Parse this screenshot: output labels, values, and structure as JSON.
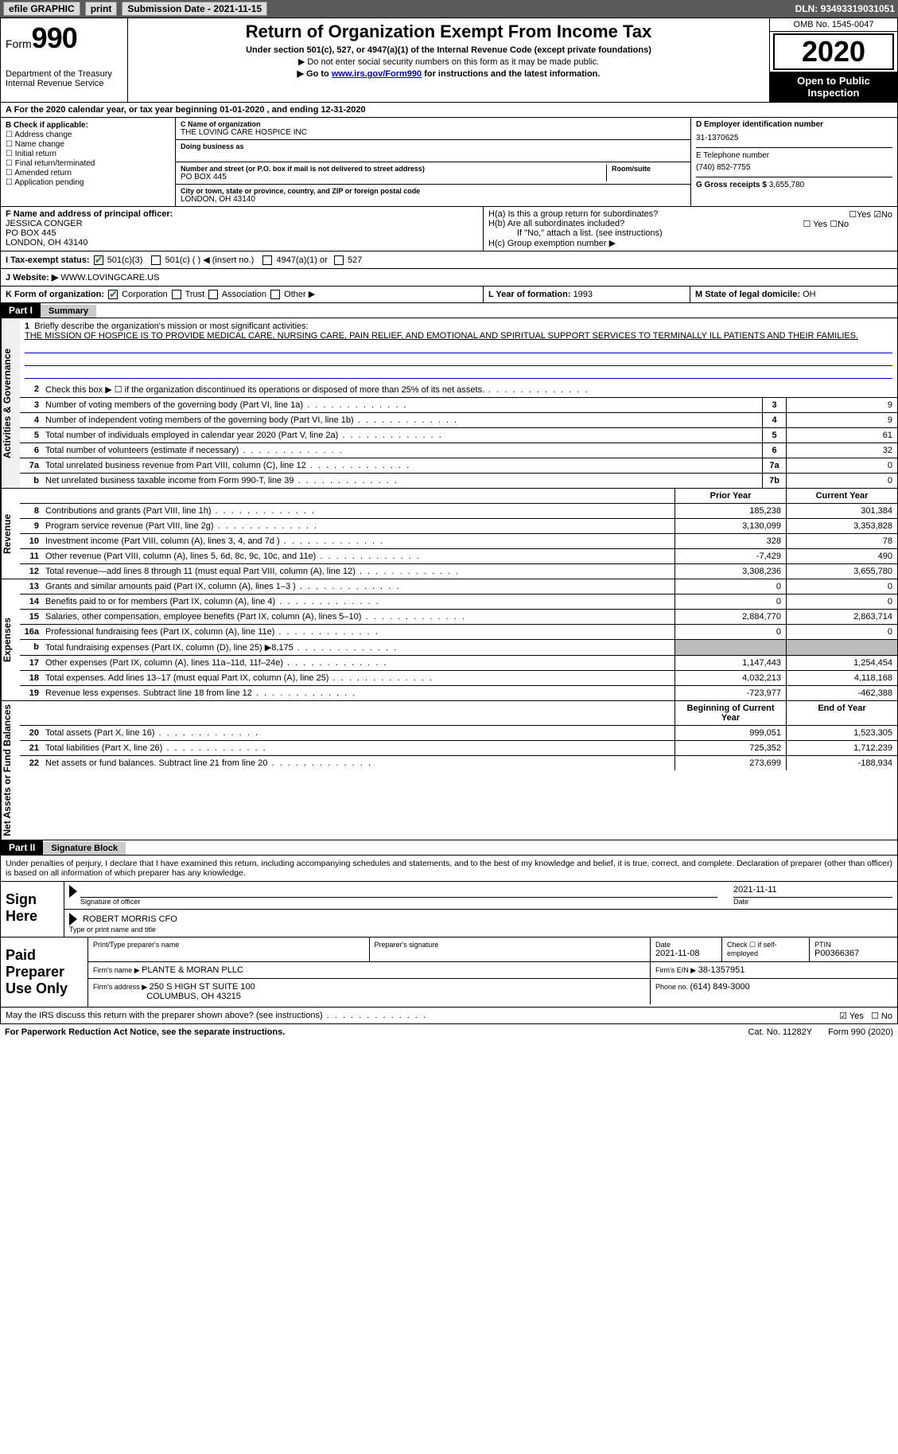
{
  "topbar": {
    "efile": "efile GRAPHIC",
    "print": "print",
    "subdate_label": "Submission Date - ",
    "subdate": "2021-11-15",
    "dln_label": "DLN: ",
    "dln": "93493319031051"
  },
  "hdr": {
    "form_word": "Form",
    "form_num": "990",
    "dept": "Department of the Treasury\nInternal Revenue Service",
    "title": "Return of Organization Exempt From Income Tax",
    "sub": "Under section 501(c), 527, or 4947(a)(1) of the Internal Revenue Code (except private foundations)",
    "note1": "▶ Do not enter social security numbers on this form as it may be made public.",
    "note2a": "▶ Go to ",
    "note2link": "www.irs.gov/Form990",
    "note2b": " for instructions and the latest information.",
    "omb": "OMB No. 1545-0047",
    "year": "2020",
    "inspect": "Open to Public Inspection"
  },
  "A": {
    "text": "A For the 2020 calendar year, or tax year beginning 01-01-2020   , and ending 12-31-2020"
  },
  "B": {
    "label": "B Check if applicable:",
    "items": [
      "☐ Address change",
      "☐ Name change",
      "☐ Initial return",
      "☐ Final return/terminated",
      "☐ Amended return",
      "☐ Application pending"
    ]
  },
  "C": {
    "name_lbl": "C Name of organization",
    "name": "THE LOVING CARE HOSPICE INC",
    "dba_lbl": "Doing business as",
    "addr_lbl": "Number and street (or P.O. box if mail is not delivered to street address)",
    "room_lbl": "Room/suite",
    "addr": "PO BOX 445",
    "city_lbl": "City or town, state or province, country, and ZIP or foreign postal code",
    "city": "LONDON, OH  43140"
  },
  "D": {
    "ein_lbl": "D Employer identification number",
    "ein": "31-1370625",
    "tel_lbl": "E Telephone number",
    "tel": "(740) 852-7755",
    "gross_lbl": "G Gross receipts $ ",
    "gross": "3,655,780"
  },
  "F": {
    "lbl": "F  Name and address of principal officer:",
    "name": "JESSICA CONGER",
    "addr1": "PO BOX 445",
    "addr2": "LONDON, OH  43140"
  },
  "H": {
    "a_lbl": "H(a)  Is this a group return for subordinates?",
    "a_yes": "☐Yes",
    "a_no": "☑No",
    "b_lbl": "H(b)  Are all subordinates included?",
    "b_yes": "☐ Yes",
    "b_no": "☐No",
    "b_note": "If \"No,\" attach a list. (see instructions)",
    "c_lbl": "H(c)  Group exemption number ▶"
  },
  "I": {
    "lbl": "I    Tax-exempt status:",
    "c3": "501(c)(3)",
    "cx": "501(c) (  ) ◀ (insert no.)",
    "a1": "4947(a)(1) or",
    "s527": "527"
  },
  "J": {
    "lbl": "J   Website: ▶  ",
    "val": "WWW.LOVINGCARE.US"
  },
  "K": {
    "lbl": "K Form of organization:",
    "corp": "Corporation",
    "trust": "Trust",
    "assoc": "Association",
    "other": "Other ▶"
  },
  "L": {
    "lbl": "L Year of formation: ",
    "val": "1993"
  },
  "M": {
    "lbl": "M State of legal domicile: ",
    "val": "OH"
  },
  "part1": {
    "label": "Part I",
    "title": "Summary"
  },
  "mission": {
    "num": "1",
    "lbl": "Briefly describe the organization's mission or most significant activities:",
    "text": "THE MISSION OF HOSPICE IS TO PROVIDE MEDICAL CARE, NURSING CARE, PAIN RELIEF, AND EMOTIONAL AND SPIRITUAL SUPPORT SERVICES TO TERMINALLY ILL PATIENTS AND THEIR FAMILIES."
  },
  "gov_lines": [
    {
      "n": "2",
      "d": "Check this box ▶ ☐  if the organization discontinued its operations or disposed of more than 25% of its net assets."
    },
    {
      "n": "3",
      "d": "Number of voting members of the governing body (Part VI, line 1a)",
      "box": "3",
      "v": "9"
    },
    {
      "n": "4",
      "d": "Number of independent voting members of the governing body (Part VI, line 1b)",
      "box": "4",
      "v": "9"
    },
    {
      "n": "5",
      "d": "Total number of individuals employed in calendar year 2020 (Part V, line 2a)",
      "box": "5",
      "v": "61"
    },
    {
      "n": "6",
      "d": "Total number of volunteers (estimate if necessary)",
      "box": "6",
      "v": "32"
    },
    {
      "n": "7a",
      "d": "Total unrelated business revenue from Part VIII, column (C), line 12",
      "box": "7a",
      "v": "0"
    },
    {
      "n": "b",
      "d": "Net unrelated business taxable income from Form 990-T, line 39",
      "box": "7b",
      "v": "0"
    }
  ],
  "vtabs": {
    "gov": "Activities & Governance",
    "rev": "Revenue",
    "exp": "Expenses",
    "net": "Net Assets or Fund Balances"
  },
  "fin_hdr": {
    "py": "Prior Year",
    "cy": "Current Year"
  },
  "rev_lines": [
    {
      "n": "8",
      "d": "Contributions and grants (Part VIII, line 1h)",
      "py": "185,238",
      "cy": "301,384"
    },
    {
      "n": "9",
      "d": "Program service revenue (Part VIII, line 2g)",
      "py": "3,130,099",
      "cy": "3,353,828"
    },
    {
      "n": "10",
      "d": "Investment income (Part VIII, column (A), lines 3, 4, and 7d )",
      "py": "328",
      "cy": "78"
    },
    {
      "n": "11",
      "d": "Other revenue (Part VIII, column (A), lines 5, 6d, 8c, 9c, 10c, and 11e)",
      "py": "-7,429",
      "cy": "490"
    },
    {
      "n": "12",
      "d": "Total revenue—add lines 8 through 11 (must equal Part VIII, column (A), line 12)",
      "py": "3,308,236",
      "cy": "3,655,780"
    }
  ],
  "exp_lines": [
    {
      "n": "13",
      "d": "Grants and similar amounts paid (Part IX, column (A), lines 1–3 )",
      "py": "0",
      "cy": "0"
    },
    {
      "n": "14",
      "d": "Benefits paid to or for members (Part IX, column (A), line 4)",
      "py": "0",
      "cy": "0"
    },
    {
      "n": "15",
      "d": "Salaries, other compensation, employee benefits (Part IX, column (A), lines 5–10)",
      "py": "2,884,770",
      "cy": "2,863,714"
    },
    {
      "n": "16a",
      "d": "Professional fundraising fees (Part IX, column (A), line 11e)",
      "py": "0",
      "cy": "0"
    },
    {
      "n": "b",
      "d": "Total fundraising expenses (Part IX, column (D), line 25) ▶8,175",
      "shade": true
    },
    {
      "n": "17",
      "d": "Other expenses (Part IX, column (A), lines 11a–11d, 11f–24e)",
      "py": "1,147,443",
      "cy": "1,254,454"
    },
    {
      "n": "18",
      "d": "Total expenses. Add lines 13–17 (must equal Part IX, column (A), line 25)",
      "py": "4,032,213",
      "cy": "4,118,168"
    },
    {
      "n": "19",
      "d": "Revenue less expenses. Subtract line 18 from line 12",
      "py": "-723,977",
      "cy": "-462,388"
    }
  ],
  "net_hdr": {
    "py": "Beginning of Current Year",
    "cy": "End of Year"
  },
  "net_lines": [
    {
      "n": "20",
      "d": "Total assets (Part X, line 16)",
      "py": "999,051",
      "cy": "1,523,305"
    },
    {
      "n": "21",
      "d": "Total liabilities (Part X, line 26)",
      "py": "725,352",
      "cy": "1,712,239"
    },
    {
      "n": "22",
      "d": "Net assets or fund balances. Subtract line 21 from line 20",
      "py": "273,699",
      "cy": "-188,934"
    }
  ],
  "part2": {
    "label": "Part II",
    "title": "Signature Block"
  },
  "sig_decl": "Under penalties of perjury, I declare that I have examined this return, including accompanying schedules and statements, and to the best of my knowledge and belief, it is true, correct, and complete. Declaration of preparer (other than officer) is based on all information of which preparer has any knowledge.",
  "sign": {
    "here": "Sign Here",
    "sig_lbl": "Signature of officer",
    "date": "2021-11-11",
    "date_lbl": "Date",
    "name": "ROBERT MORRIS CFO",
    "name_lbl": "Type or print name and title"
  },
  "paid": {
    "here": "Paid Preparer Use Only",
    "col1": "Print/Type preparer's name",
    "col2": "Preparer's signature",
    "col3_lbl": "Date",
    "col3": "2021-11-08",
    "col4": "Check ☐  if self-employed",
    "col5_lbl": "PTIN",
    "col5": "P00366367",
    "firm_lbl": "Firm's name    ▶ ",
    "firm": "PLANTE & MORAN PLLC",
    "ein_lbl": "Firm's EIN ▶ ",
    "ein": "38-1357951",
    "addr_lbl": "Firm's address ▶ ",
    "addr1": "250 S HIGH ST SUITE 100",
    "addr2": "COLUMBUS, OH  43215",
    "phone_lbl": "Phone no. ",
    "phone": "(614) 849-3000"
  },
  "discuss": {
    "q": "May the IRS discuss this return with the preparer shown above? (see instructions)",
    "yes": "☑ Yes",
    "no": "☐ No"
  },
  "footer": {
    "l": "For Paperwork Reduction Act Notice, see the separate instructions.",
    "m": "Cat. No. 11282Y",
    "r": "Form 990 (2020)"
  }
}
